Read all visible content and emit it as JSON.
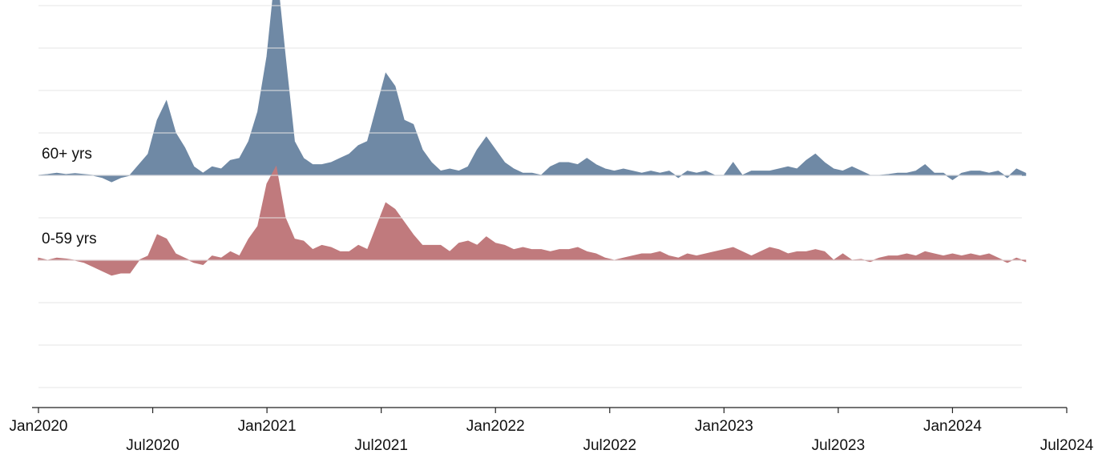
{
  "chart_data": {
    "type": "ridgeline",
    "x": [
      2020,
      2020.04,
      2020.08,
      2020.12,
      2020.16,
      2020.2,
      2020.24,
      2020.28,
      2020.32,
      2020.36,
      2020.4,
      2020.44,
      2020.48,
      2020.52,
      2020.56,
      2020.6,
      2020.64,
      2020.68,
      2020.72,
      2020.76,
      2020.8,
      2020.84,
      2020.88,
      2020.92,
      2020.96,
      2021,
      2021.04,
      2021.08,
      2021.12,
      2021.16,
      2021.2,
      2021.24,
      2021.28,
      2021.32,
      2021.36,
      2021.4,
      2021.44,
      2021.48,
      2021.52,
      2021.56,
      2021.6,
      2021.64,
      2021.68,
      2021.72,
      2021.76,
      2021.8,
      2021.84,
      2021.88,
      2021.92,
      2021.96,
      2022,
      2022.04,
      2022.08,
      2022.12,
      2022.16,
      2022.2,
      2022.24,
      2022.28,
      2022.32,
      2022.36,
      2022.4,
      2022.44,
      2022.48,
      2022.52,
      2022.56,
      2022.6,
      2022.64,
      2022.68,
      2022.72,
      2022.76,
      2022.8,
      2022.84,
      2022.88,
      2022.92,
      2022.96,
      2023,
      2023.04,
      2023.08,
      2023.12,
      2023.16,
      2023.2,
      2023.24,
      2023.28,
      2023.32,
      2023.36,
      2023.4,
      2023.44,
      2023.48,
      2023.52,
      2023.56,
      2023.6,
      2023.64,
      2023.68,
      2023.72,
      2023.76,
      2023.8,
      2023.84,
      2023.88,
      2023.92,
      2023.96,
      2024,
      2024.04,
      2024.08,
      2024.12,
      2024.16,
      2024.2,
      2024.24,
      2024.28,
      2024.32
    ],
    "series": [
      {
        "name": "60+ yrs",
        "color": "#6f89a5",
        "baseline": 5,
        "values": [
          0,
          0.02,
          0.05,
          0.02,
          0.04,
          0.02,
          0,
          -0.05,
          -0.15,
          -0.05,
          0,
          0.25,
          0.5,
          1.3,
          1.75,
          1.0,
          0.65,
          0.2,
          0.05,
          0.2,
          0.15,
          0.35,
          0.4,
          0.8,
          1.5,
          2.8,
          4.9,
          2.8,
          0.8,
          0.4,
          0.25,
          0.25,
          0.3,
          0.4,
          0.5,
          0.7,
          0.8,
          1.6,
          2.4,
          2.1,
          1.3,
          1.2,
          0.6,
          0.3,
          0.1,
          0.15,
          0.1,
          0.2,
          0.6,
          0.9,
          0.6,
          0.3,
          0.15,
          0.05,
          0.05,
          0,
          0.2,
          0.3,
          0.3,
          0.25,
          0.4,
          0.25,
          0.15,
          0.1,
          0.15,
          0.1,
          0.05,
          0.1,
          0.05,
          0.1,
          -0.05,
          0.1,
          0.05,
          0.1,
          0,
          0,
          0.3,
          0,
          0.1,
          0.1,
          0.1,
          0.15,
          0.2,
          0.15,
          0.35,
          0.5,
          0.3,
          0.15,
          0.1,
          0.2,
          0.1,
          0,
          0,
          0.02,
          0.05,
          0.05,
          0.1,
          0.25,
          0.05,
          0.05,
          -0.1,
          0.05,
          0.1,
          0.1,
          0.05,
          0.1,
          -0.05,
          0.15,
          0.05
        ]
      },
      {
        "name": "0-59 yrs",
        "color": "#c07a7d",
        "baseline": 3,
        "values": [
          0.05,
          0,
          0.05,
          0.03,
          0,
          -0.05,
          -0.15,
          -0.25,
          -0.35,
          -0.3,
          -0.3,
          0,
          0.1,
          0.6,
          0.5,
          0.15,
          0.05,
          -0.05,
          -0.1,
          0.1,
          0.05,
          0.2,
          0.1,
          0.5,
          0.8,
          1.8,
          2.2,
          1.0,
          0.5,
          0.45,
          0.25,
          0.35,
          0.3,
          0.2,
          0.2,
          0.35,
          0.25,
          0.8,
          1.35,
          1.2,
          0.9,
          0.6,
          0.35,
          0.35,
          0.35,
          0.2,
          0.4,
          0.45,
          0.35,
          0.55,
          0.4,
          0.35,
          0.25,
          0.3,
          0.25,
          0.25,
          0.2,
          0.25,
          0.25,
          0.3,
          0.2,
          0.15,
          0.05,
          0,
          0.05,
          0.1,
          0.15,
          0.15,
          0.2,
          0.1,
          0.05,
          0.15,
          0.1,
          0.15,
          0.2,
          0.25,
          0.3,
          0.2,
          0.1,
          0.2,
          0.3,
          0.25,
          0.15,
          0.2,
          0.2,
          0.25,
          0.2,
          0,
          0.15,
          0,
          0.02,
          -0.03,
          0.05,
          0.1,
          0.1,
          0.15,
          0.1,
          0.2,
          0.15,
          0.1,
          0.15,
          0.1,
          0.15,
          0.1,
          0.15,
          0.05,
          -0.05,
          0.05,
          -0.03
        ]
      }
    ],
    "xlim": [
      2020,
      2024.5
    ],
    "xticks": [
      {
        "value": 2020,
        "label": "Jan2020"
      },
      {
        "value": 2020.5,
        "label": "Jul2020"
      },
      {
        "value": 2021,
        "label": "Jan2021"
      },
      {
        "value": 2021.5,
        "label": "Jul2021"
      },
      {
        "value": 2022,
        "label": "Jan2022"
      },
      {
        "value": 2022.5,
        "label": "Jul2022"
      },
      {
        "value": 2023,
        "label": "Jan2023"
      },
      {
        "value": 2023.5,
        "label": "Jul2023"
      },
      {
        "value": 2024,
        "label": "Jan2024"
      },
      {
        "value": 2024.5,
        "label": "Jul2024"
      }
    ],
    "ylim": [
      -0.15,
      9
    ],
    "yticks": [
      0,
      1,
      2,
      3,
      4,
      5,
      6,
      7,
      8,
      9
    ],
    "grid": true
  }
}
